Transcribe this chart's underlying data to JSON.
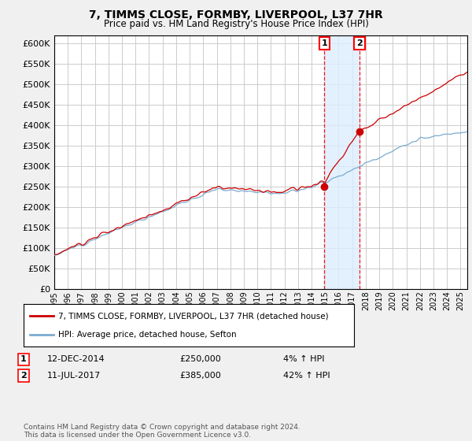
{
  "title": "7, TIMMS CLOSE, FORMBY, LIVERPOOL, L37 7HR",
  "subtitle": "Price paid vs. HM Land Registry's House Price Index (HPI)",
  "ylim": [
    0,
    620000
  ],
  "yticks": [
    0,
    50000,
    100000,
    150000,
    200000,
    250000,
    300000,
    350000,
    400000,
    450000,
    500000,
    550000,
    600000
  ],
  "xlim_start": 1995.0,
  "xlim_end": 2025.5,
  "background_color": "#f0f0f0",
  "plot_bg_color": "#ffffff",
  "grid_color": "#cccccc",
  "sale1_date": 2014.95,
  "sale2_date": 2017.54,
  "sale1_price": 250000,
  "sale2_price": 385000,
  "sale1_label": "1",
  "sale2_label": "2",
  "sale1_info": "12-DEC-2014",
  "sale1_amount": "£250,000",
  "sale1_hpi": "4% ↑ HPI",
  "sale2_info": "11-JUL-2017",
  "sale2_amount": "£385,000",
  "sale2_hpi": "42% ↑ HPI",
  "legend_label1": "7, TIMMS CLOSE, FORMBY, LIVERPOOL, L37 7HR (detached house)",
  "legend_label2": "HPI: Average price, detached house, Sefton",
  "copyright_text": "Contains HM Land Registry data © Crown copyright and database right 2024.\nThis data is licensed under the Open Government Licence v3.0.",
  "line_color_red": "#cc0000",
  "line_color_blue": "#7aabcf",
  "shade_color": "#ddeeff"
}
